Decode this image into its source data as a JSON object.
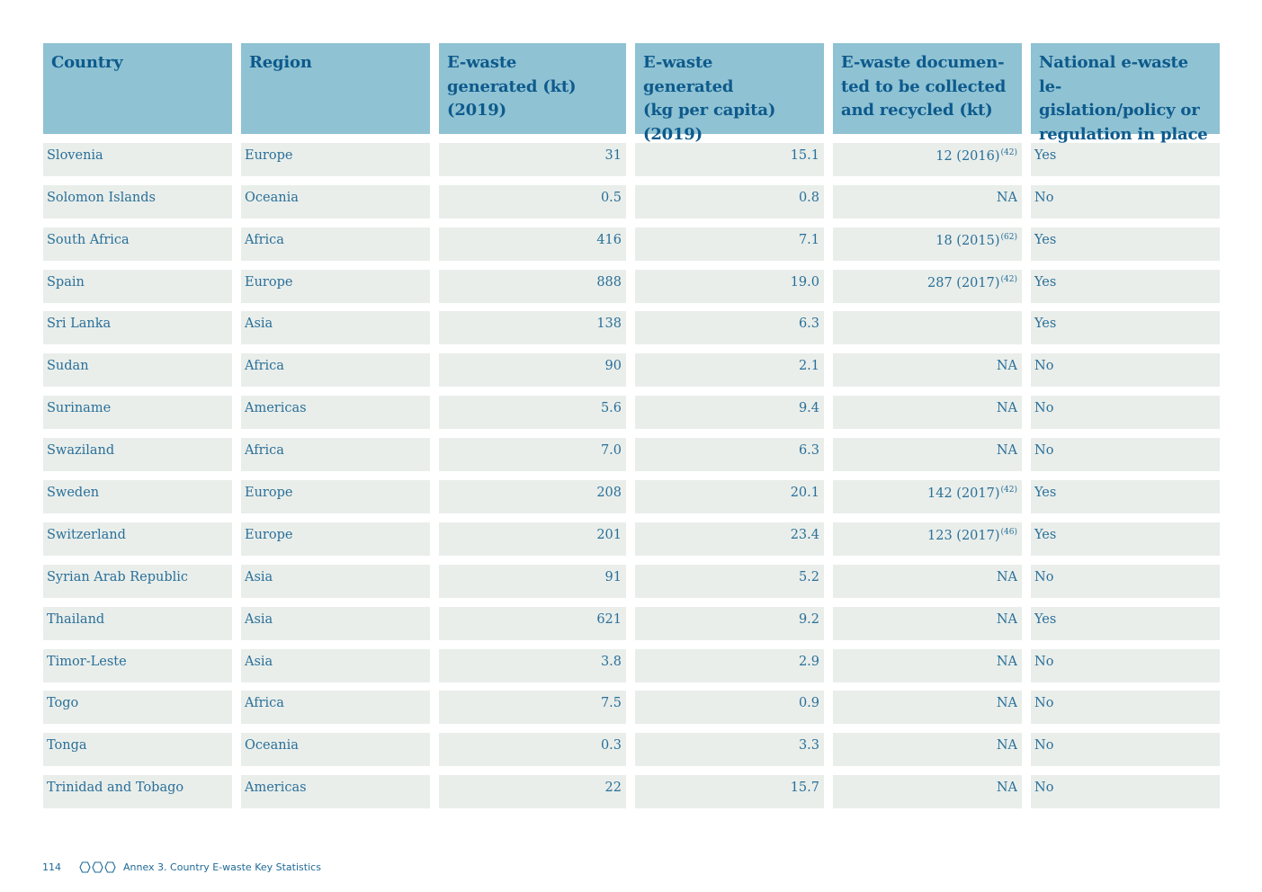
{
  "table": {
    "headers": [
      "Country",
      "Region",
      "E-waste generated (kt) (2019)",
      "E-waste generated (kg per capita) (2019)",
      "E-waste documen-ted to be collected and recycled (kt)",
      "National e-waste le-gislation/policy or regulation in place"
    ],
    "header_lines": [
      [
        "Country"
      ],
      [
        "Region"
      ],
      [
        "E-waste",
        "generated (kt)",
        "(2019)"
      ],
      [
        "E-waste",
        "generated",
        "(kg per capita) (2019)"
      ],
      [
        "E-waste documen-",
        "ted to be collected",
        "and recycled (kt)"
      ],
      [
        "National e-waste le-",
        "gislation/policy or",
        "regulation in place"
      ]
    ],
    "rows": [
      {
        "country": "Slovenia",
        "region": "Europe",
        "generated_kt": "31",
        "per_capita": "15.1",
        "collected": "12 (2016)",
        "ref": "(42)",
        "legislation": "Yes"
      },
      {
        "country": "Solomon Islands",
        "region": "Oceania",
        "generated_kt": "0.5",
        "per_capita": "0.8",
        "collected": "NA",
        "ref": "",
        "legislation": "No"
      },
      {
        "country": "South Africa",
        "region": "Africa",
        "generated_kt": "416",
        "per_capita": "7.1",
        "collected": "18 (2015)",
        "ref": "(62)",
        "legislation": "Yes"
      },
      {
        "country": "Spain",
        "region": "Europe",
        "generated_kt": "888",
        "per_capita": "19.0",
        "collected": "287 (2017)",
        "ref": "(42)",
        "legislation": "Yes"
      },
      {
        "country": "Sri Lanka",
        "region": "Asia",
        "generated_kt": "138",
        "per_capita": "6.3",
        "collected": "",
        "ref": "",
        "legislation": "Yes"
      },
      {
        "country": "Sudan",
        "region": "Africa",
        "generated_kt": "90",
        "per_capita": "2.1",
        "collected": "NA",
        "ref": "",
        "legislation": "No"
      },
      {
        "country": "Suriname",
        "region": "Americas",
        "generated_kt": "5.6",
        "per_capita": "9.4",
        "collected": "NA",
        "ref": "",
        "legislation": "No"
      },
      {
        "country": "Swaziland",
        "region": "Africa",
        "generated_kt": "7.0",
        "per_capita": "6.3",
        "collected": "NA",
        "ref": "",
        "legislation": "No"
      },
      {
        "country": "Sweden",
        "region": "Europe",
        "generated_kt": "208",
        "per_capita": "20.1",
        "collected": "142 (2017)",
        "ref": "(42)",
        "legislation": "Yes"
      },
      {
        "country": "Switzerland",
        "region": "Europe",
        "generated_kt": "201",
        "per_capita": "23.4",
        "collected": "123 (2017)",
        "ref": "(46)",
        "legislation": "Yes"
      },
      {
        "country": "Syrian Arab Republic",
        "region": "Asia",
        "generated_kt": "91",
        "per_capita": "5.2",
        "collected": "NA",
        "ref": "",
        "legislation": "No"
      },
      {
        "country": "Thailand",
        "region": "Asia",
        "generated_kt": "621",
        "per_capita": "9.2",
        "collected": "NA",
        "ref": "",
        "legislation": "Yes"
      },
      {
        "country": "Timor-Leste",
        "region": "Asia",
        "generated_kt": "3.8",
        "per_capita": "2.9",
        "collected": "NA",
        "ref": "",
        "legislation": "No"
      },
      {
        "country": "Togo",
        "region": "Africa",
        "generated_kt": "7.5",
        "per_capita": "0.9",
        "collected": "NA",
        "ref": "",
        "legislation": "No"
      },
      {
        "country": "Tonga",
        "region": "Oceania",
        "generated_kt": "0.3",
        "per_capita": "3.3",
        "collected": "NA",
        "ref": "",
        "legislation": "No"
      },
      {
        "country": "Trinidad and Tobago",
        "region": "Americas",
        "generated_kt": "22",
        "per_capita": "15.7",
        "collected": "NA",
        "ref": "",
        "legislation": "No"
      }
    ]
  },
  "footer": {
    "page_number": "114",
    "icon": "three-hexagons-icon",
    "section_title": "Annex 3. Country E-waste Key Statistics"
  },
  "colors": {
    "header_bg": "#8fc2d3",
    "header_text": "#0d5a8c",
    "cell_bg": "#e9eeea",
    "cell_text": "#2a6f99"
  }
}
